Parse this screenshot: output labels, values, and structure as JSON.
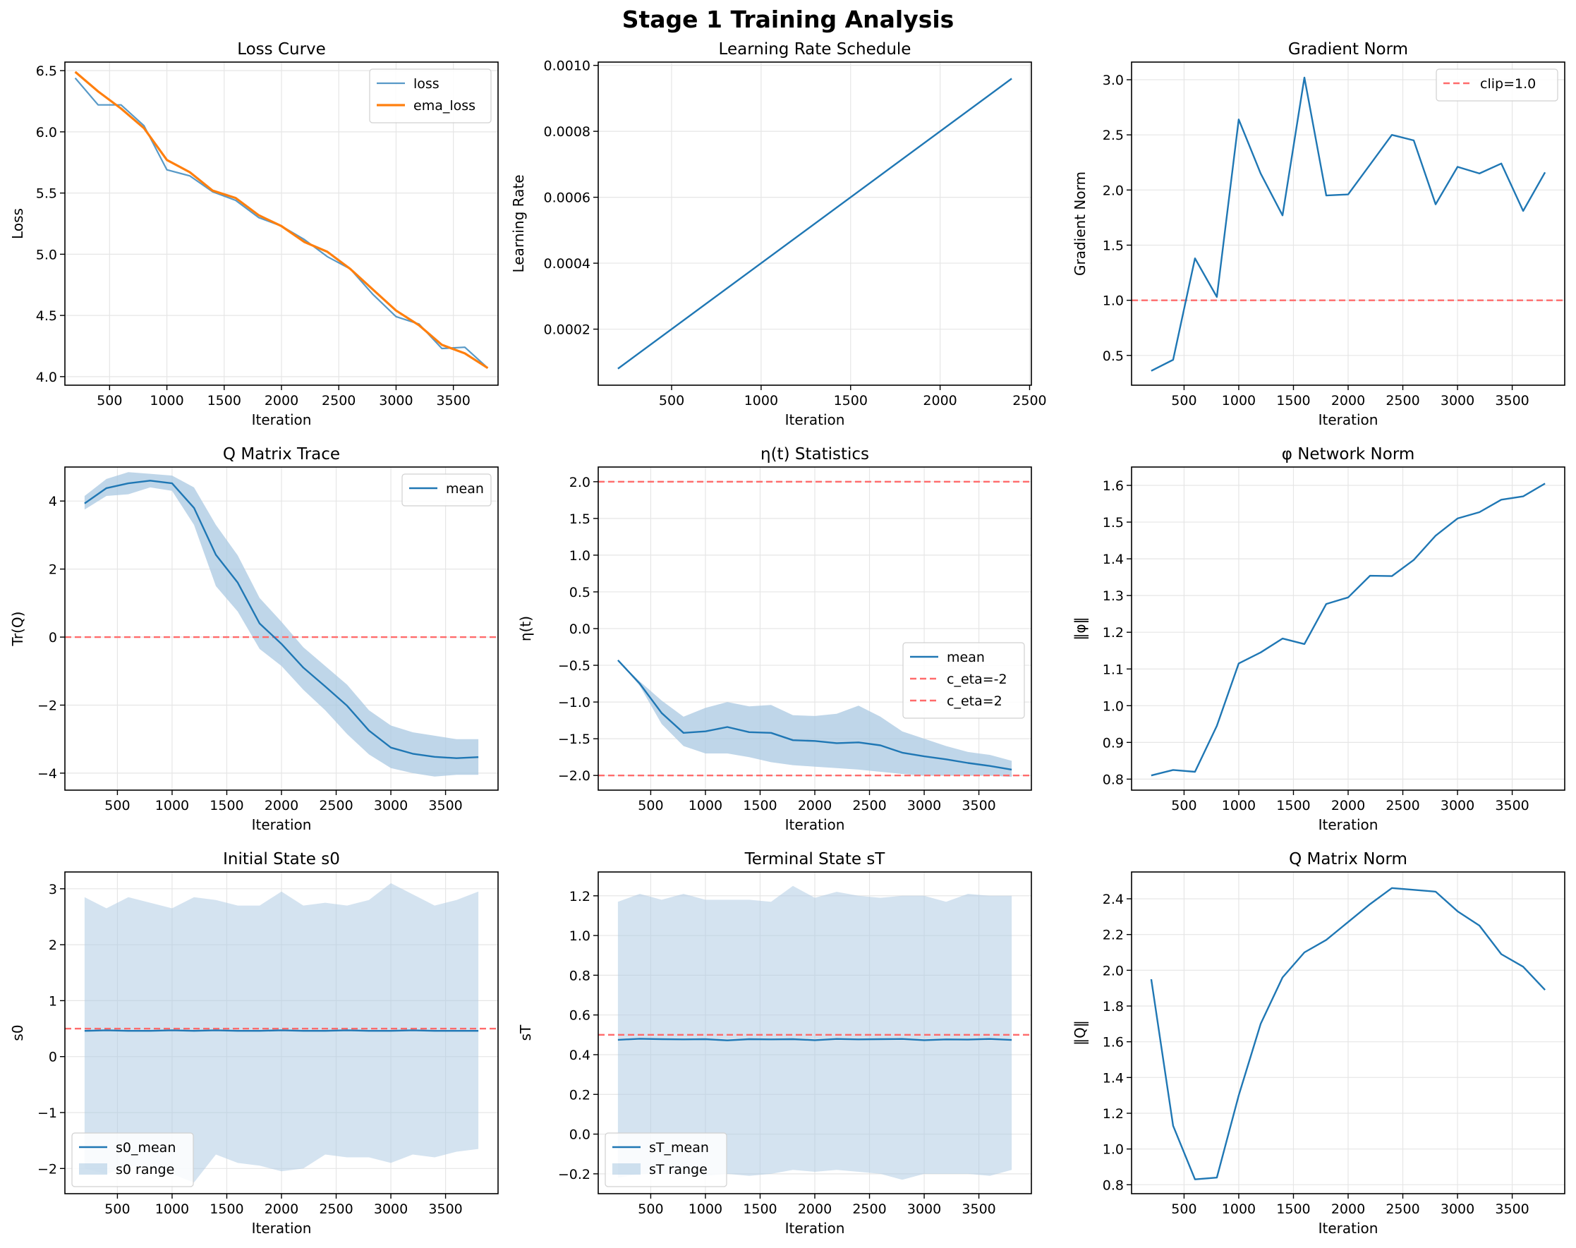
{
  "figure": {
    "title": "Stage 1 Training Analysis"
  },
  "colors": {
    "blue": "#1f77b4",
    "orange": "#ff7f0e",
    "red_dashed": "#ff6b6b",
    "band": "#a9c8e2",
    "grid": "#e6e6e6"
  },
  "chart_data": [
    {
      "id": "loss",
      "type": "line",
      "title": "Loss Curve",
      "xlabel": "Iteration",
      "ylabel": "Loss",
      "xlim": [
        110,
        3890
      ],
      "ylim": [
        3.93,
        6.57
      ],
      "xticks": [
        500,
        1000,
        1500,
        2000,
        2500,
        3000,
        3500
      ],
      "yticks": [
        4.0,
        4.5,
        5.0,
        5.5,
        6.0,
        6.5
      ],
      "ytick_labels": [
        "4.0",
        "4.5",
        "5.0",
        "5.5",
        "6.0",
        "6.5"
      ],
      "legend": {
        "position": "upper-right",
        "entries": [
          "loss",
          "ema_loss"
        ]
      },
      "x": [
        200,
        400,
        600,
        800,
        1000,
        1200,
        1400,
        1600,
        1800,
        2000,
        2200,
        2400,
        2600,
        2800,
        3000,
        3200,
        3400,
        3600,
        3800
      ],
      "series": [
        {
          "name": "loss",
          "color": "#1f77b4",
          "width": 2.2,
          "alpha": 0.75,
          "values": [
            6.44,
            6.22,
            6.22,
            6.05,
            5.69,
            5.64,
            5.51,
            5.44,
            5.3,
            5.23,
            5.12,
            4.98,
            4.88,
            4.67,
            4.49,
            4.43,
            4.23,
            4.24,
            4.07
          ]
        },
        {
          "name": "ema_loss",
          "color": "#ff7f0e",
          "width": 3.2,
          "values": [
            6.49,
            6.33,
            6.19,
            6.03,
            5.77,
            5.67,
            5.52,
            5.46,
            5.32,
            5.23,
            5.1,
            5.02,
            4.88,
            4.71,
            4.54,
            4.42,
            4.26,
            4.19,
            4.07
          ]
        }
      ]
    },
    {
      "id": "lr",
      "type": "line",
      "title": "Learning Rate Schedule",
      "xlabel": "Iteration",
      "ylabel": "Learning Rate",
      "xlim": [
        90,
        2510
      ],
      "ylim": [
        3e-05,
        0.00101
      ],
      "xticks": [
        500,
        1000,
        1500,
        2000,
        2500
      ],
      "yticks": [
        0.0002,
        0.0004,
        0.0006,
        0.0008,
        0.001
      ],
      "ytick_labels": [
        "0.0002",
        "0.0004",
        "0.0006",
        "0.0008",
        "0.0010"
      ],
      "x": [
        200,
        2400
      ],
      "series": [
        {
          "name": "",
          "color": "#1f77b4",
          "width": 2.4,
          "values": [
            8e-05,
            0.00096
          ]
        }
      ]
    },
    {
      "id": "gradnorm",
      "type": "line",
      "title": "Gradient Norm",
      "xlabel": "Iteration",
      "ylabel": "Gradient Norm",
      "xlim": [
        20,
        3980
      ],
      "ylim": [
        0.23,
        3.16
      ],
      "xticks": [
        500,
        1000,
        1500,
        2000,
        2500,
        3000,
        3500
      ],
      "yticks": [
        0.5,
        1.0,
        1.5,
        2.0,
        2.5,
        3.0
      ],
      "ytick_labels": [
        "0.5",
        "1.0",
        "1.5",
        "2.0",
        "2.5",
        "3.0"
      ],
      "legend": {
        "position": "upper-right",
        "entries": [
          "clip=1.0"
        ]
      },
      "hlines": [
        {
          "y": 1.0,
          "label": "clip=1.0",
          "color": "#ff6b6b"
        }
      ],
      "x": [
        200,
        400,
        600,
        800,
        1000,
        1200,
        1400,
        1600,
        1800,
        2000,
        2200,
        2400,
        2600,
        2800,
        3000,
        3200,
        3400,
        3600,
        3800
      ],
      "series": [
        {
          "name": "",
          "color": "#1f77b4",
          "width": 2.4,
          "values": [
            0.36,
            0.46,
            1.38,
            1.03,
            2.64,
            2.15,
            1.77,
            3.02,
            1.95,
            1.96,
            2.23,
            2.5,
            2.45,
            1.87,
            2.21,
            2.15,
            2.24,
            1.81,
            2.16
          ]
        }
      ]
    },
    {
      "id": "qtrace",
      "type": "area",
      "title": "Q Matrix Trace",
      "xlabel": "Iteration",
      "ylabel": "Tr(Q)",
      "xlim": [
        20,
        3980
      ],
      "ylim": [
        -4.5,
        5.0
      ],
      "xticks": [
        500,
        1000,
        1500,
        2000,
        2500,
        3000,
        3500
      ],
      "yticks": [
        -4,
        -2,
        0,
        2,
        4
      ],
      "ytick_labels": [
        "−4",
        "−2",
        "0",
        "2",
        "4"
      ],
      "legend": {
        "position": "upper-right",
        "entries": [
          "mean"
        ]
      },
      "hlines": [
        {
          "y": 0,
          "label": "",
          "color": "#ff6b6b"
        }
      ],
      "x": [
        200,
        400,
        600,
        800,
        1000,
        1200,
        1400,
        1600,
        1800,
        2000,
        2200,
        2400,
        2600,
        2800,
        3000,
        3200,
        3400,
        3600,
        3800
      ],
      "band": {
        "name": "",
        "lower": [
          3.75,
          4.15,
          4.2,
          4.4,
          4.3,
          3.3,
          1.5,
          0.75,
          -0.35,
          -0.85,
          -1.55,
          -2.15,
          -2.85,
          -3.45,
          -3.85,
          -4.0,
          -4.1,
          -4.05,
          -4.05
        ],
        "upper": [
          4.15,
          4.65,
          4.85,
          4.8,
          4.75,
          4.4,
          3.3,
          2.4,
          1.15,
          0.45,
          -0.3,
          -0.85,
          -1.4,
          -2.15,
          -2.6,
          -2.8,
          -2.9,
          -3.0,
          -3.0
        ]
      },
      "series": [
        {
          "name": "mean",
          "color": "#1f77b4",
          "width": 2.4,
          "values": [
            3.93,
            4.38,
            4.52,
            4.6,
            4.52,
            3.8,
            2.42,
            1.6,
            0.4,
            -0.2,
            -0.9,
            -1.45,
            -2.02,
            -2.75,
            -3.25,
            -3.43,
            -3.52,
            -3.56,
            -3.53
          ]
        }
      ]
    },
    {
      "id": "eta",
      "type": "area",
      "title": "η(t) Statistics",
      "xlabel": "Iteration",
      "ylabel": "η(t)",
      "xlim": [
        20,
        3980
      ],
      "ylim": [
        -2.2,
        2.2
      ],
      "xticks": [
        500,
        1000,
        1500,
        2000,
        2500,
        3000,
        3500
      ],
      "yticks": [
        -2.0,
        -1.5,
        -1.0,
        -0.5,
        0.0,
        0.5,
        1.0,
        1.5,
        2.0
      ],
      "ytick_labels": [
        "−2.0",
        "−1.5",
        "−1.0",
        "−0.5",
        "0.0",
        "0.5",
        "1.0",
        "1.5",
        "2.0"
      ],
      "legend": {
        "position": "center-right",
        "entries": [
          "mean",
          "c_eta=-2",
          "c_eta=2"
        ]
      },
      "hlines": [
        {
          "y": -2,
          "label": "c_eta=-2",
          "color": "#ff6b6b"
        },
        {
          "y": 2,
          "label": "c_eta=2",
          "color": "#ff6b6b"
        }
      ],
      "x": [
        200,
        400,
        600,
        800,
        1000,
        1200,
        1400,
        1600,
        1800,
        2000,
        2200,
        2400,
        2600,
        2800,
        3000,
        3200,
        3400,
        3600,
        3800
      ],
      "band": {
        "name": "",
        "lower": [
          -0.43,
          -0.78,
          -1.3,
          -1.6,
          -1.7,
          -1.7,
          -1.75,
          -1.82,
          -1.86,
          -1.88,
          -1.9,
          -1.92,
          -1.95,
          -1.98,
          -2.0,
          -2.0,
          -2.0,
          -2.0,
          -2.02
        ],
        "upper": [
          -0.43,
          -0.72,
          -0.98,
          -1.2,
          -1.08,
          -1.0,
          -1.06,
          -1.04,
          -1.18,
          -1.19,
          -1.16,
          -1.05,
          -1.2,
          -1.4,
          -1.5,
          -1.6,
          -1.68,
          -1.72,
          -1.8
        ]
      },
      "series": [
        {
          "name": "mean",
          "color": "#1f77b4",
          "width": 2.4,
          "values": [
            -0.43,
            -0.75,
            -1.15,
            -1.42,
            -1.4,
            -1.34,
            -1.41,
            -1.42,
            -1.52,
            -1.53,
            -1.56,
            -1.55,
            -1.59,
            -1.69,
            -1.74,
            -1.78,
            -1.83,
            -1.87,
            -1.92
          ]
        }
      ]
    },
    {
      "id": "phinorm",
      "type": "line",
      "title": "φ Network Norm",
      "xlabel": "Iteration",
      "ylabel": "‖φ‖",
      "xlim": [
        20,
        3980
      ],
      "ylim": [
        0.77,
        1.65
      ],
      "xticks": [
        500,
        1000,
        1500,
        2000,
        2500,
        3000,
        3500
      ],
      "yticks": [
        0.8,
        0.9,
        1.0,
        1.1,
        1.2,
        1.3,
        1.4,
        1.5,
        1.6
      ],
      "ytick_labels": [
        "0.8",
        "0.9",
        "1.0",
        "1.1",
        "1.2",
        "1.3",
        "1.4",
        "1.5",
        "1.6"
      ],
      "x": [
        200,
        400,
        600,
        800,
        1000,
        1200,
        1400,
        1600,
        1800,
        2000,
        2200,
        2400,
        2600,
        2800,
        3000,
        3200,
        3400,
        3600,
        3800
      ],
      "series": [
        {
          "name": "",
          "color": "#1f77b4",
          "width": 2.4,
          "values": [
            0.81,
            0.825,
            0.82,
            0.945,
            1.115,
            1.145,
            1.183,
            1.168,
            1.277,
            1.295,
            1.354,
            1.353,
            1.397,
            1.463,
            1.51,
            1.527,
            1.561,
            1.57,
            1.605
          ]
        }
      ]
    },
    {
      "id": "s0",
      "type": "area",
      "title": "Initial State s0",
      "xlabel": "Iteration",
      "ylabel": "s0",
      "xlim": [
        20,
        3980
      ],
      "ylim": [
        -2.45,
        3.3
      ],
      "xticks": [
        500,
        1000,
        1500,
        2000,
        2500,
        3000,
        3500
      ],
      "yticks": [
        -2,
        -1,
        0,
        1,
        2,
        3
      ],
      "ytick_labels": [
        "−2",
        "−1",
        "0",
        "1",
        "2",
        "3"
      ],
      "legend": {
        "position": "lower-left",
        "entries": [
          "s0_mean",
          "s0 range"
        ]
      },
      "hlines": [
        {
          "y": 0.5,
          "label": "",
          "color": "#ff6b6b"
        }
      ],
      "x": [
        200,
        400,
        600,
        800,
        1000,
        1200,
        1400,
        1600,
        1800,
        2000,
        2200,
        2400,
        2600,
        2800,
        3000,
        3200,
        3400,
        3600,
        3800
      ],
      "band": {
        "name": "s0 range",
        "lower": [
          -2.0,
          -2.1,
          -1.95,
          -2.0,
          -2.1,
          -2.25,
          -1.75,
          -1.9,
          -1.95,
          -2.05,
          -2.0,
          -1.75,
          -1.8,
          -1.8,
          -1.9,
          -1.75,
          -1.8,
          -1.7,
          -1.65
        ],
        "upper": [
          2.85,
          2.65,
          2.85,
          2.75,
          2.65,
          2.85,
          2.8,
          2.7,
          2.7,
          2.95,
          2.7,
          2.75,
          2.7,
          2.8,
          3.1,
          2.9,
          2.7,
          2.8,
          2.95
        ]
      },
      "series": [
        {
          "name": "s0_mean",
          "color": "#1f77b4",
          "width": 2.4,
          "values": [
            0.46,
            0.47,
            0.46,
            0.46,
            0.47,
            0.46,
            0.47,
            0.46,
            0.46,
            0.47,
            0.46,
            0.46,
            0.47,
            0.46,
            0.46,
            0.47,
            0.46,
            0.46,
            0.46
          ]
        }
      ]
    },
    {
      "id": "sT",
      "type": "area",
      "title": "Terminal State sT",
      "xlabel": "Iteration",
      "ylabel": "sT",
      "xlim": [
        20,
        3980
      ],
      "ylim": [
        -0.3,
        1.32
      ],
      "xticks": [
        500,
        1000,
        1500,
        2000,
        2500,
        3000,
        3500
      ],
      "yticks": [
        -0.2,
        0.0,
        0.2,
        0.4,
        0.6,
        0.8,
        1.0,
        1.2
      ],
      "ytick_labels": [
        "−0.2",
        "0.0",
        "0.2",
        "0.4",
        "0.6",
        "0.8",
        "1.0",
        "1.2"
      ],
      "legend": {
        "position": "lower-left",
        "entries": [
          "sT_mean",
          "sT range"
        ]
      },
      "hlines": [
        {
          "y": 0.5,
          "label": "",
          "color": "#ff6b6b"
        }
      ],
      "x": [
        200,
        400,
        600,
        800,
        1000,
        1200,
        1400,
        1600,
        1800,
        2000,
        2200,
        2400,
        2600,
        2800,
        3000,
        3200,
        3400,
        3600,
        3800
      ],
      "band": {
        "name": "sT range",
        "lower": [
          -0.22,
          -0.2,
          -0.2,
          -0.2,
          -0.21,
          -0.2,
          -0.21,
          -0.2,
          -0.18,
          -0.19,
          -0.18,
          -0.19,
          -0.2,
          -0.23,
          -0.2,
          -0.2,
          -0.2,
          -0.21,
          -0.18
        ],
        "upper": [
          1.17,
          1.21,
          1.18,
          1.21,
          1.18,
          1.18,
          1.18,
          1.17,
          1.25,
          1.19,
          1.22,
          1.2,
          1.19,
          1.2,
          1.2,
          1.17,
          1.21,
          1.2,
          1.2
        ]
      },
      "series": [
        {
          "name": "sT_mean",
          "color": "#1f77b4",
          "width": 2.4,
          "values": [
            0.475,
            0.48,
            0.478,
            0.477,
            0.478,
            0.472,
            0.478,
            0.477,
            0.478,
            0.473,
            0.479,
            0.477,
            0.478,
            0.479,
            0.473,
            0.477,
            0.476,
            0.479,
            0.474
          ]
        }
      ]
    },
    {
      "id": "qnorm",
      "type": "line",
      "title": "Q Matrix Norm",
      "xlabel": "Iteration",
      "ylabel": "‖Q‖",
      "xlim": [
        20,
        3980
      ],
      "ylim": [
        0.75,
        2.55
      ],
      "xticks": [
        500,
        1000,
        1500,
        2000,
        2500,
        3000,
        3500
      ],
      "yticks": [
        0.8,
        1.0,
        1.2,
        1.4,
        1.6,
        1.8,
        2.0,
        2.2,
        2.4
      ],
      "ytick_labels": [
        "0.8",
        "1.0",
        "1.2",
        "1.4",
        "1.6",
        "1.8",
        "2.0",
        "2.2",
        "2.4"
      ],
      "x": [
        200,
        400,
        600,
        800,
        1000,
        1200,
        1400,
        1600,
        1800,
        2000,
        2200,
        2400,
        2600,
        2800,
        3000,
        3200,
        3400,
        3600,
        3800
      ],
      "series": [
        {
          "name": "",
          "color": "#1f77b4",
          "width": 2.4,
          "values": [
            1.95,
            1.13,
            0.83,
            0.84,
            1.3,
            1.7,
            1.96,
            2.1,
            2.17,
            2.27,
            2.37,
            2.46,
            2.45,
            2.44,
            2.33,
            2.25,
            2.09,
            2.02,
            1.89
          ]
        }
      ]
    }
  ]
}
